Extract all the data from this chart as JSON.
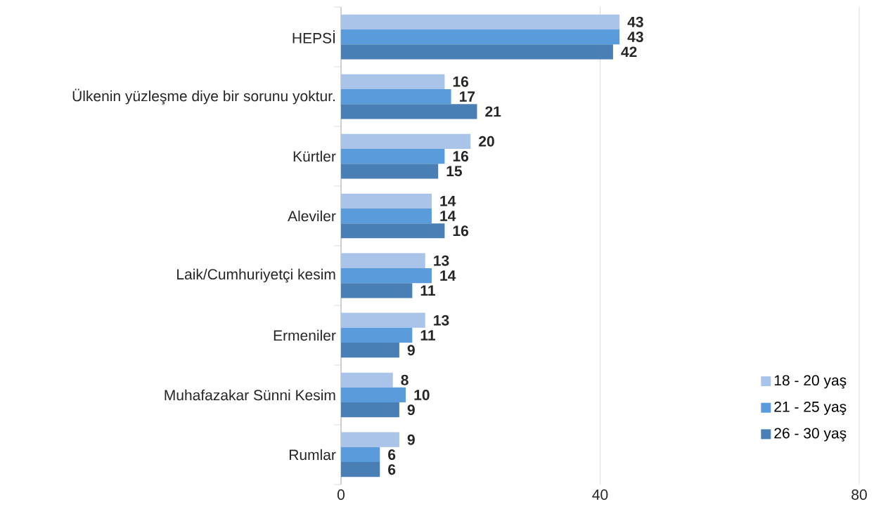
{
  "chart_data": {
    "type": "bar",
    "orientation": "horizontal",
    "categories": [
      "HEPSİ",
      "Ülkenin yüzleşme diye bir sorunu yoktur.",
      "Kürtler",
      "Aleviler",
      "Laik/Cumhuriyetçi kesim",
      "Ermeniler",
      "Muhafazakar Sünni Kesim",
      "Rumlar"
    ],
    "series": [
      {
        "name": "18 - 20 yaş",
        "color": "#a9c4e8",
        "values": [
          43,
          16,
          20,
          14,
          13,
          13,
          8,
          9
        ]
      },
      {
        "name": "21 - 25 yaş",
        "color": "#5a9bdc",
        "values": [
          43,
          17,
          16,
          14,
          14,
          11,
          10,
          6
        ]
      },
      {
        "name": "26 - 30 yaş",
        "color": "#4a7fb5",
        "values": [
          42,
          21,
          15,
          16,
          11,
          9,
          9,
          6
        ]
      }
    ],
    "xlim": [
      0,
      80
    ],
    "xticks": [
      0,
      40,
      80
    ],
    "grid": "x",
    "legend": "bottom right",
    "data_labels": true
  }
}
